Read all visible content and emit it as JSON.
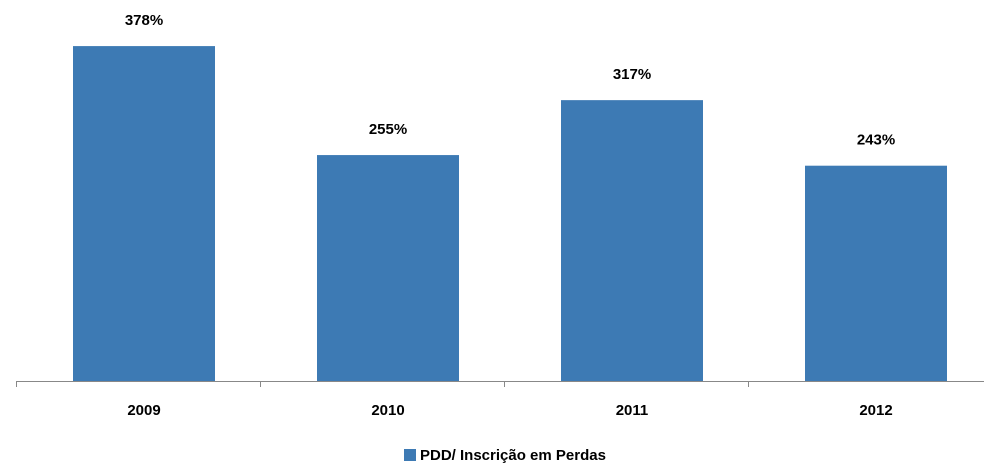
{
  "chart_data": {
    "type": "bar",
    "categories": [
      "2009",
      "2010",
      "2011",
      "2012"
    ],
    "values": [
      378,
      255,
      317,
      243
    ],
    "value_labels": [
      "378%",
      "255%",
      "317%",
      "243%"
    ],
    "series_name": "PDD/ Inscrição em Perdas",
    "color": "#3d7ab4"
  }
}
